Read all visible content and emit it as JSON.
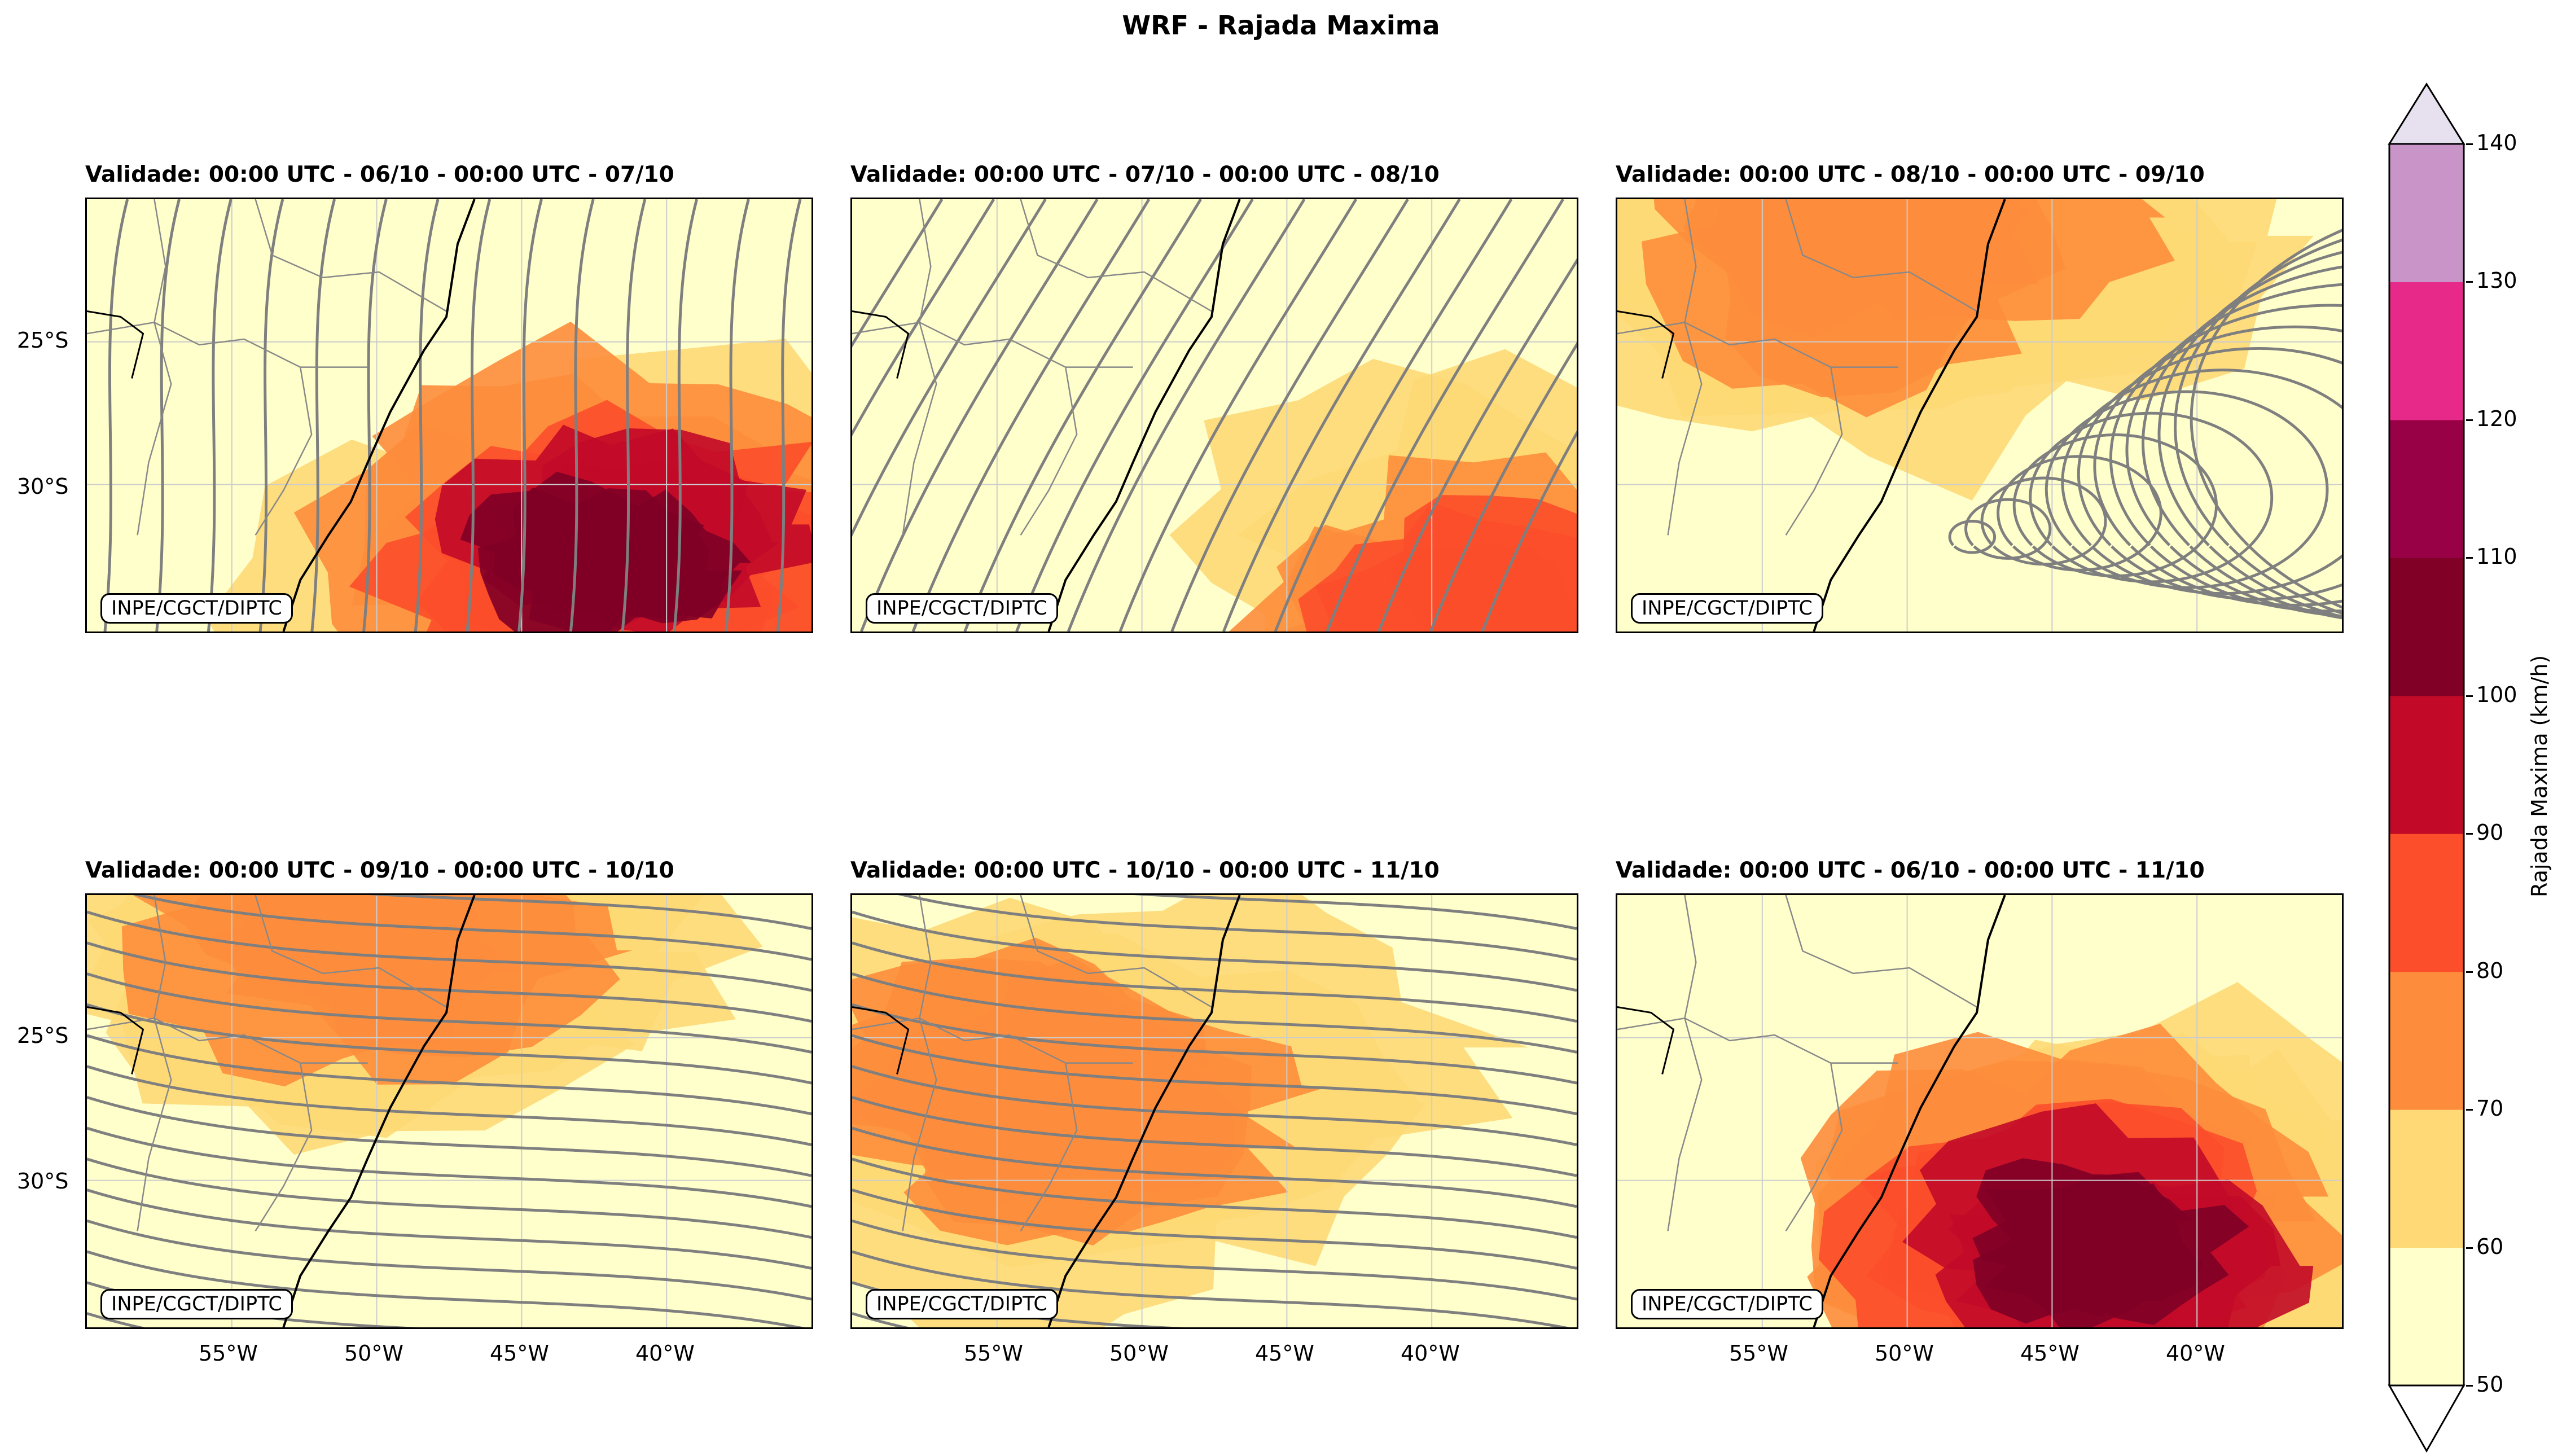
{
  "figure": {
    "title": "WRF - Rajada Maxima"
  },
  "panels": [
    {
      "title": "Validade: 00:00 UTC - 06/10 - 00:00 UTC - 07/10",
      "intensity": 0.95,
      "core": [
        0.72,
        0.82
      ],
      "wind": "southerly"
    },
    {
      "title": "Validade: 00:00 UTC - 07/10 - 00:00 UTC - 08/10",
      "intensity": 0.55,
      "core": [
        0.9,
        0.92
      ],
      "wind": "southwesterly"
    },
    {
      "title": "Validade: 00:00 UTC - 08/10 - 00:00 UTC - 09/10",
      "intensity": 0.35,
      "core": [
        0.4,
        0.1
      ],
      "wind": "cyclonic"
    },
    {
      "title": "Validade: 00:00 UTC - 09/10 - 00:00 UTC - 10/10",
      "intensity": 0.4,
      "core": [
        0.4,
        0.08
      ],
      "wind": "easterly"
    },
    {
      "title": "Validade: 00:00 UTC - 10/10 - 00:00 UTC - 11/10",
      "intensity": 0.35,
      "core": [
        0.3,
        0.5
      ],
      "wind": "easterly"
    },
    {
      "title": "Validade: 00:00 UTC - 06/10 - 00:00 UTC - 11/10",
      "intensity": 1.0,
      "core": [
        0.68,
        0.8
      ],
      "wind": "none"
    }
  ],
  "watermark": "INPE/CGCT/DIPTC",
  "axes": {
    "lat_ticks": [
      "25°S",
      "30°S"
    ],
    "lon_ticks": [
      "55°W",
      "50°W",
      "45°W",
      "40°W"
    ]
  },
  "colorbar": {
    "label": "Rajada Maxima (km/h)",
    "ticks": [
      "50",
      "60",
      "70",
      "80",
      "90",
      "100",
      "110",
      "120",
      "130",
      "140"
    ],
    "levels": [
      50,
      60,
      70,
      80,
      90,
      100,
      110,
      120,
      130,
      140
    ],
    "colors": [
      "#ffffcc",
      "#fed976",
      "#fd8d3c",
      "#fc4e2a",
      "#c20a28",
      "#800026",
      "#990147",
      "#e7298a",
      "#c994c7",
      "#e7e1ef"
    ],
    "under_color": "#ffffff",
    "over_color": "#e7e1ef"
  },
  "style": {
    "streamline_color": "#7f7f7f",
    "coast_color": "#000000",
    "border_color": "#888888",
    "grid_color": "#cccccc"
  }
}
